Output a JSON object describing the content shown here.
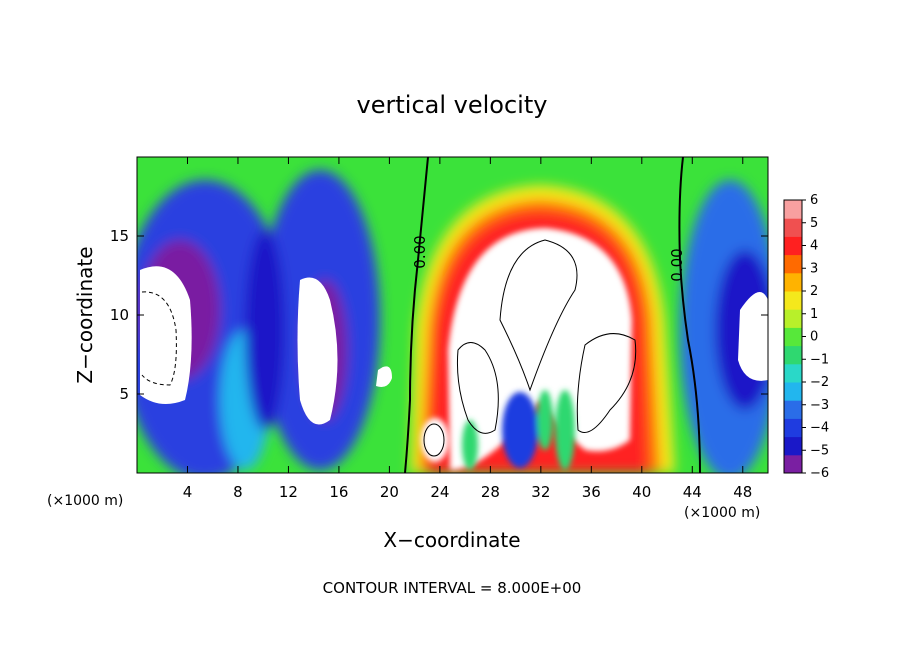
{
  "chart_data": {
    "type": "heatmap",
    "title": "vertical velocity",
    "xlabel": "X−coordinate",
    "ylabel": "Z−coordinate",
    "x_unit": "(×1000 m)",
    "x_unit_right": "(×1000 m)",
    "xlim": [
      0,
      50
    ],
    "ylim": [
      0,
      20
    ],
    "x_ticks": [
      4,
      8,
      12,
      16,
      20,
      24,
      28,
      32,
      36,
      40,
      44,
      48
    ],
    "y_ticks": [
      5,
      10,
      15
    ],
    "colorbar": {
      "min": -6,
      "max": 6,
      "ticks": [
        "6",
        "5",
        "4",
        "3",
        "2",
        "1",
        "0",
        "−1",
        "−2",
        "−3",
        "−4",
        "−5",
        "−6"
      ],
      "colors": [
        "#7a1fa2",
        "#1a18c8",
        "#1f3ce0",
        "#2a6de8",
        "#22b6ee",
        "#2ad8c8",
        "#2fd870",
        "#57e83a",
        "#b8f02a",
        "#f4e81c",
        "#ffb300",
        "#ff6a00",
        "#ff2020",
        "#f05050",
        "#f8a0a0"
      ]
    },
    "contour_labels": [
      "0.00",
      "0.00"
    ],
    "note": "CONTOUR INTERVAL = 8.000E+00"
  }
}
